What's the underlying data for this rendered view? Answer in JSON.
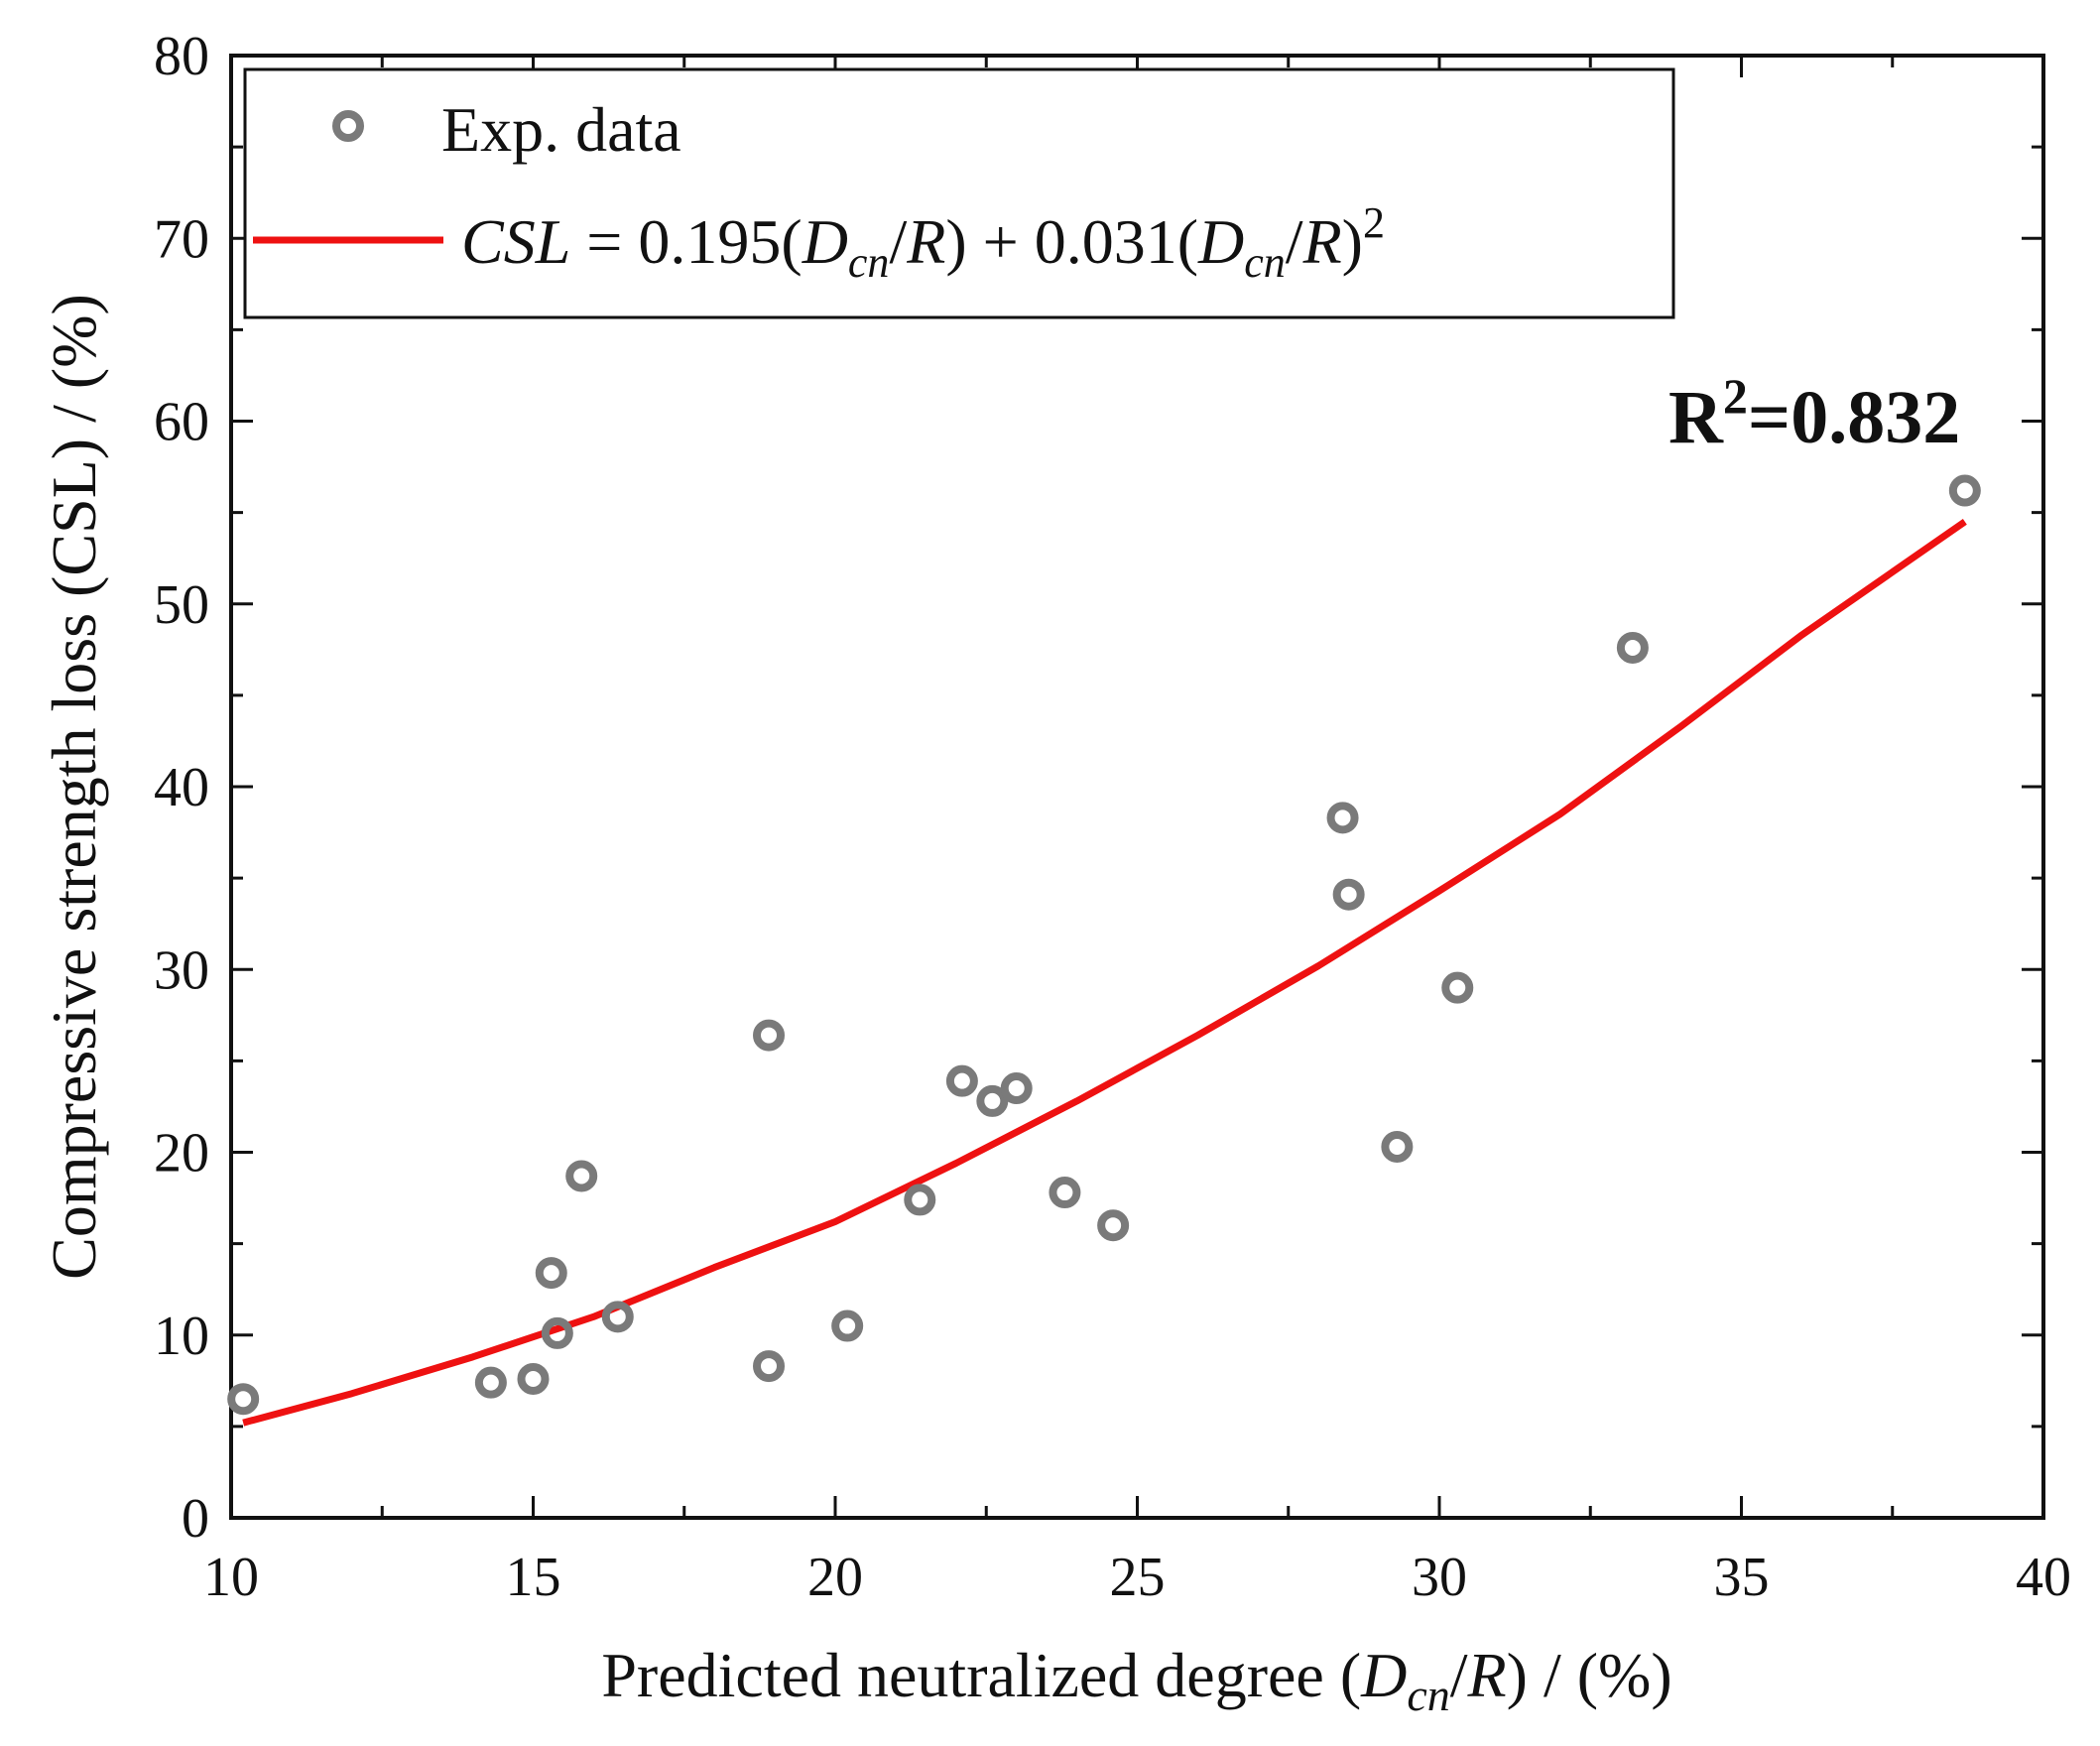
{
  "chart_data": {
    "type": "scatter",
    "title": "",
    "xlabel": "Predicted neutralized degree (D_cn/R) / (%)",
    "ylabel": "Compressive strength loss (CSL) / (%)",
    "xlabel_parts": {
      "pre": "Predicted neutralized degree (",
      "D": "D",
      "sub": "cn",
      "post": "/",
      "R": "R",
      "end": ") / (%)"
    },
    "xlim": [
      10,
      40
    ],
    "ylim": [
      0,
      80
    ],
    "xticks": [
      10,
      15,
      20,
      25,
      30,
      35,
      40
    ],
    "yticks": [
      0,
      10,
      20,
      30,
      40,
      50,
      60,
      70,
      80
    ],
    "legend": {
      "position": "top-left",
      "scatter_label": "Exp. data",
      "fit_label": "CSL = 0.195(D_cn/R) + 0.031(D_cn/R)^2",
      "fit_parts": {
        "csl": "CSL",
        "eq": " = 0.195(",
        "d1": "D",
        "sub1": "cn",
        "slash1": "/",
        "r1": "R",
        "mid": ") + 0.031(",
        "d2": "D",
        "sub2": "cn",
        "slash2": "/",
        "r2": "R",
        "close": ")",
        "sup": "2"
      }
    },
    "annotation": {
      "base": "R",
      "sup": "2",
      "rest": "=0.832",
      "position": "top-right"
    },
    "series": [
      {
        "name": "Exp. data",
        "kind": "scatter",
        "color": "#7a7a7a",
        "points": [
          [
            10.2,
            6.5
          ],
          [
            14.3,
            7.4
          ],
          [
            15.0,
            7.6
          ],
          [
            15.3,
            13.4
          ],
          [
            15.4,
            10.1
          ],
          [
            15.8,
            18.7
          ],
          [
            16.4,
            11.0
          ],
          [
            18.9,
            8.3
          ],
          [
            18.9,
            26.4
          ],
          [
            20.2,
            10.5
          ],
          [
            21.4,
            17.4
          ],
          [
            22.1,
            23.9
          ],
          [
            22.6,
            22.8
          ],
          [
            23.0,
            23.5
          ],
          [
            23.8,
            17.8
          ],
          [
            24.6,
            16.0
          ],
          [
            28.4,
            38.3
          ],
          [
            28.5,
            34.1
          ],
          [
            29.3,
            20.3
          ],
          [
            30.3,
            29.0
          ],
          [
            33.2,
            47.6
          ],
          [
            38.7,
            56.2
          ]
        ]
      },
      {
        "name": "CSL = 0.195(D_cn/R) + 0.031(D_cn/R)^2",
        "kind": "line",
        "color": "#ee1111",
        "x": [
          10.2,
          12,
          14,
          16,
          18,
          20,
          22,
          24,
          26,
          28,
          30,
          32,
          34,
          36,
          38.7
        ],
        "y": [
          5.2,
          6.8,
          8.8,
          11.0,
          13.7,
          16.2,
          19.4,
          22.8,
          26.4,
          30.2,
          34.3,
          38.5,
          43.3,
          48.3,
          54.5
        ]
      }
    ]
  }
}
